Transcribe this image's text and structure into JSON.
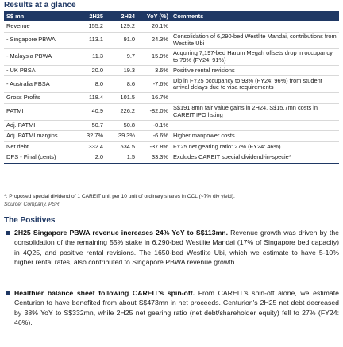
{
  "section_title": "Results at a glance",
  "table": {
    "headers": [
      "S$ mn",
      "2H25",
      "2H24",
      "YoY (%)",
      "Comments"
    ],
    "rows": [
      {
        "label": "Revenue",
        "h25": "155.2",
        "h24": "129.2",
        "yoy": "20.1%",
        "comment": ""
      },
      {
        "label": "- Singapore PBWA",
        "h25": "113.1",
        "h24": "91.0",
        "yoy": "24.3%",
        "comment": "Consolidation of 6,290-bed Westlite Mandai, contributions from Westlite Ubi"
      },
      {
        "label": "- Malaysia PBWA",
        "h25": "11.3",
        "h24": "9.7",
        "yoy": "15.9%",
        "comment": "Acquiring 7,197-bed Harum Megah offsets drop in occupancy to 79% (FY24: 91%)"
      },
      {
        "label": "- UK PBSA",
        "h25": "20.0",
        "h24": "19.3",
        "yoy": "3.6%",
        "comment": "Positive rental revisions"
      },
      {
        "label": "- Australia PBSA",
        "h25": "8.0",
        "h24": "8.6",
        "yoy": "-7.6%",
        "comment": "Dip in FY25 occupancy to 93% (FY24: 96%) from student arrival delays due to visa requirements"
      },
      {
        "label": "Gross Profits",
        "h25": "118.4",
        "h24": "101.5",
        "yoy": "16.7%",
        "comment": ""
      },
      {
        "label": "PATMI",
        "h25": "40.9",
        "h24": "226.2",
        "yoy": "-82.0%",
        "comment": "S$191.8mn fair value gains in 2H24, S$15.7mn costs in CAREIT IPO listing"
      },
      {
        "label": "Adj. PATMI",
        "h25": "50.7",
        "h24": "50.8",
        "yoy": "-0.1%",
        "comment": ""
      },
      {
        "label": "Adj. PATMI margins",
        "h25": "32.7%",
        "h24": "39.3%",
        "yoy": "-6.6%",
        "comment": "Higher manpower costs"
      },
      {
        "label": "Net debt",
        "h25": "332.4",
        "h24": "534.5",
        "yoy": "-37.8%",
        "comment": "FY25 net gearing ratio: 27% (FY24: 46%)"
      },
      {
        "label": "DPS - Final (cents)",
        "h25": "2.0",
        "h24": "1.5",
        "yoy": "33.3%",
        "comment": "Excludes CAREIT special dividend-in-specie*"
      }
    ]
  },
  "footnote": "*: Proposed special dividend of 1 CAREIT unit per 10 unit of ordinary shares in CCL (~7% div yield).",
  "source": "Source: Company, PSR",
  "positives": {
    "title": "The Positives",
    "items": [
      {
        "bold": "2H25 Singapore PBWA revenue increases 24% YoY to S$113mn.",
        "text": " Revenue growth was driven by the consolidation of the remaining 55% stake in 6,290-bed Westlite Mandai (17% of Singapore bed capacity) in 4Q25, and positive rental revisions. The 1650-bed Westlite Ubi, which we estimate to have 5-10% higher rental rates, also contributed to Singapore PBWA revenue growth."
      },
      {
        "bold": "Healthier balance sheet following CAREIT's spin-off.",
        "text": " From CAREIT's spin-off alone, we estimate Centurion to have benefited from about S$473mn in net proceeds. Centurion's 2H25 net debt decreased by 38% YoY to S$332mn, while 2H25 net gearing ratio (net debt/shareholder equity) fell to 27% (FY24: 46%)."
      }
    ]
  }
}
